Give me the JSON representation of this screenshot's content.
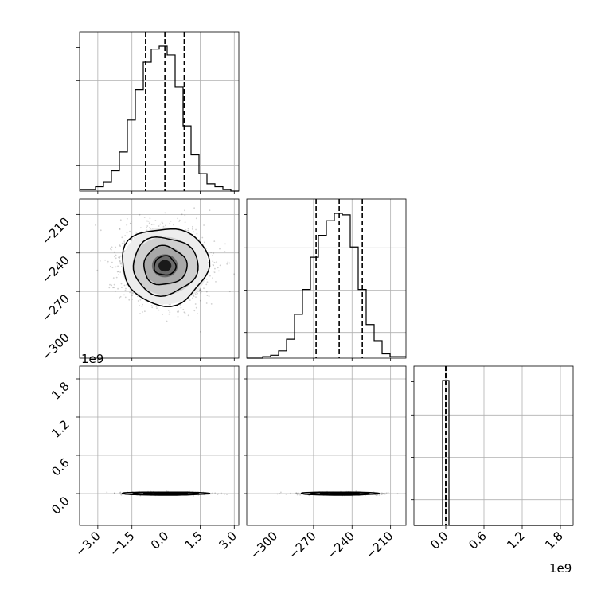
{
  "chart_data": {
    "type": "corner",
    "grid": true,
    "parameters": [
      {
        "range": [
          -3.8,
          3.2
        ],
        "ticks": [
          -3.0,
          -1.5,
          0.0,
          1.5,
          3.0
        ],
        "tick_labels": [
          "−3.0",
          "−1.5",
          "0.0",
          "1.5",
          "3.0"
        ],
        "quantiles": [
          -0.9,
          -0.05,
          0.8
        ],
        "offset": ""
      },
      {
        "range": [
          -322,
          -198
        ],
        "ticks": [
          -300,
          -270,
          -240,
          -210
        ],
        "tick_labels": [
          "−300",
          "−270",
          "−240",
          "−210"
        ],
        "quantiles": [
          -268,
          -250,
          -232
        ],
        "offset": ""
      },
      {
        "range": [
          -0.5,
          2.0
        ],
        "ticks": [
          0.0,
          0.6,
          1.2,
          1.8
        ],
        "tick_labels": [
          "0.0",
          "0.6",
          "1.2",
          "1.8"
        ],
        "quantiles": [
          0.0,
          0.0,
          0.0
        ],
        "offset": "1e9"
      }
    ],
    "histograms": [
      {
        "param": 0,
        "bins": [
          -3.8,
          -3.45,
          -3.1,
          -2.75,
          -2.4,
          -2.05,
          -1.7,
          -1.35,
          -1.0,
          -0.65,
          -0.3,
          0.05,
          0.4,
          0.75,
          1.1,
          1.45,
          1.8,
          2.15,
          2.5,
          2.85,
          3.2
        ],
        "counts": [
          1,
          1,
          3,
          6,
          14,
          27,
          49,
          70,
          89,
          98,
          100,
          94,
          72,
          45,
          25,
          12,
          5,
          3,
          1,
          0
        ]
      },
      {
        "param": 1,
        "bins": [
          -322,
          -315.8,
          -309.6,
          -303.4,
          -297.2,
          -291,
          -284.8,
          -278.6,
          -272.4,
          -266.2,
          -260,
          -253.8,
          -247.6,
          -241.4,
          -235.2,
          -229,
          -222.8,
          -216.6,
          -210.4,
          -204.2,
          -198
        ],
        "counts": [
          0,
          0,
          1,
          2,
          5,
          13,
          30,
          47,
          69,
          84,
          94,
          99,
          98,
          76,
          47,
          23,
          12,
          3,
          1,
          1
        ]
      },
      {
        "param": 2,
        "bins": [
          -0.5,
          -0.05,
          0.05,
          2.0
        ],
        "counts": [
          0,
          100,
          0
        ]
      }
    ],
    "contour_panels": [
      {
        "x_param": 0,
        "y_param": 1,
        "center": [
          -0.05,
          -250
        ],
        "std": [
          0.95,
          15
        ]
      },
      {
        "x_param": 0,
        "y_param": 2,
        "center": [
          -0.05,
          0.0
        ],
        "std": [
          0.95,
          0.012
        ]
      },
      {
        "x_param": 1,
        "y_param": 2,
        "center": [
          -250,
          0.0
        ],
        "std": [
          15,
          0.012
        ]
      }
    ],
    "contour_levels_sigma": [
      0.5,
      1.0,
      1.5,
      2.0
    ]
  }
}
